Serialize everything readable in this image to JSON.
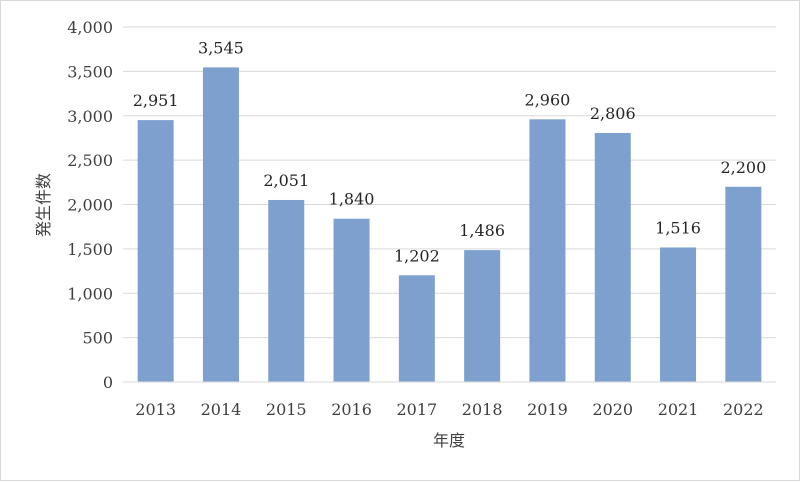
{
  "chart_data": {
    "type": "bar",
    "title": "",
    "xlabel": "年度",
    "ylabel": "発生件数",
    "categories": [
      "2013",
      "2014",
      "2015",
      "2016",
      "2017",
      "2018",
      "2019",
      "2020",
      "2021",
      "2022"
    ],
    "values": [
      2951,
      3545,
      2051,
      1840,
      1202,
      1486,
      2960,
      2806,
      1516,
      2200
    ],
    "value_labels": [
      "2,951",
      "3,545",
      "2,051",
      "1,840",
      "1,202",
      "1,486",
      "2,960",
      "2,806",
      "1,516",
      "2,200"
    ],
    "ylim": [
      0,
      4000
    ],
    "yticks": [
      0,
      500,
      1000,
      1500,
      2000,
      2500,
      3000,
      3500,
      4000
    ],
    "ytick_labels": [
      "0",
      "500",
      "1,000",
      "1,500",
      "2,000",
      "2,500",
      "3,000",
      "3,500",
      "4,000"
    ],
    "grid": true,
    "legend": "none",
    "bar_color": "#7da0cf",
    "grid_color": "#d9d9d9"
  }
}
